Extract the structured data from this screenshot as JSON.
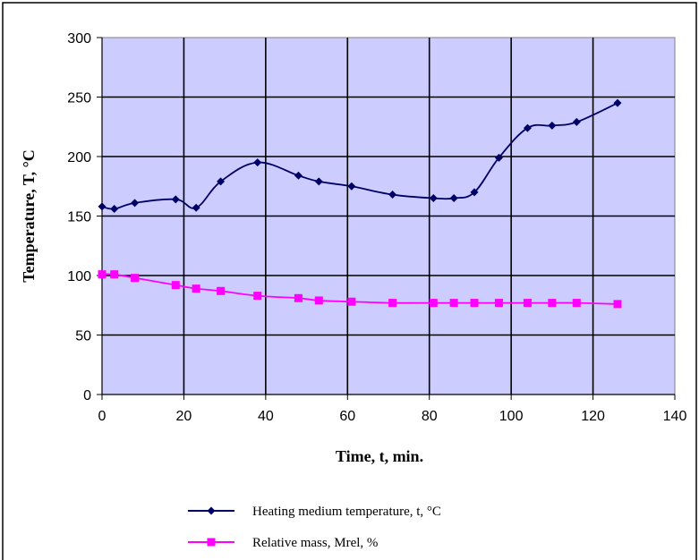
{
  "chart_data": {
    "type": "line",
    "xlabel": "Time, t, min.",
    "ylabel": "Temperature,  T, °C",
    "xlim": [
      0,
      140
    ],
    "ylim": [
      0,
      300
    ],
    "x_ticks": [
      "0",
      "20",
      "40",
      "60",
      "80",
      "100",
      "120",
      "140"
    ],
    "y_ticks": [
      "0",
      "50",
      "100",
      "150",
      "200",
      "250",
      "300"
    ],
    "grid": true,
    "legend_position": "bottom",
    "plot_background": "#ccccff",
    "series": [
      {
        "name": "Heating medium temperature, t, °C",
        "color": "#000066",
        "marker": "diamond",
        "x": [
          0,
          3,
          8,
          18,
          23,
          29,
          38,
          48,
          53,
          61,
          71,
          81,
          86,
          91,
          97,
          104,
          110,
          116,
          126
        ],
        "y": [
          158,
          156,
          161,
          164,
          157,
          179,
          195,
          184,
          179,
          175,
          168,
          165,
          165,
          170,
          199,
          224,
          226,
          229,
          245
        ]
      },
      {
        "name": "Relative mass, Mrel, %",
        "color": "#ff00ff",
        "marker": "square",
        "x": [
          0,
          3,
          8,
          18,
          23,
          29,
          38,
          48,
          53,
          61,
          71,
          81,
          86,
          91,
          97,
          104,
          110,
          116,
          126
        ],
        "y": [
          101,
          101,
          98,
          92,
          89,
          87,
          83,
          81,
          79,
          78,
          77,
          77,
          77,
          77,
          77,
          77,
          77,
          77,
          76
        ]
      }
    ]
  }
}
